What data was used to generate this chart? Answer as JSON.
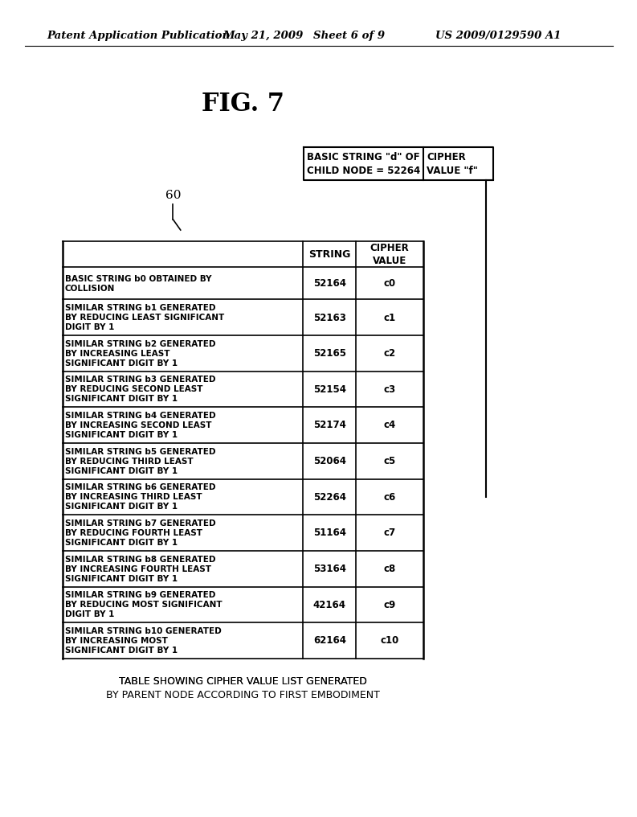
{
  "header_line1": "Patent Application Publication",
  "header_date": "May 21, 2009",
  "header_sheet": "Sheet 6 of 9",
  "header_patent": "US 2009/0129590 A1",
  "fig_title": "FIG. 7",
  "table_label": "60",
  "top_box_col1": "BASIC STRING \"d\" OF\nCHILD NODE = 52264",
  "top_box_col2": "CIPHER\nVALUE \"f\"",
  "col_header1": "STRING",
  "col_header2": "CIPHER\nVALUE",
  "rows": [
    {
      "description": "BASIC STRING b0 OBTAINED BY\nCOLLISION",
      "string_val": "52164",
      "cipher_val": "c0"
    },
    {
      "description": "SIMILAR STRING b1 GENERATED\nBY REDUCING LEAST SIGNIFICANT\nDIGIT BY 1",
      "string_val": "52163",
      "cipher_val": "c1"
    },
    {
      "description": "SIMILAR STRING b2 GENERATED\nBY INCREASING LEAST\nSIGNIFICANT DIGIT BY 1",
      "string_val": "52165",
      "cipher_val": "c2"
    },
    {
      "description": "SIMILAR STRING b3 GENERATED\nBY REDUCING SECOND LEAST\nSIGNIFICANT DIGIT BY 1",
      "string_val": "52154",
      "cipher_val": "c3"
    },
    {
      "description": "SIMILAR STRING b4 GENERATED\nBY INCREASING SECOND LEAST\nSIGNIFICANT DIGIT BY 1",
      "string_val": "52174",
      "cipher_val": "c4"
    },
    {
      "description": "SIMILAR STRING b5 GENERATED\nBY REDUCING THIRD LEAST\nSIGNIFICANT DIGIT BY 1",
      "string_val": "52064",
      "cipher_val": "c5"
    },
    {
      "description": "SIMILAR STRING b6 GENERATED\nBY INCREASING THIRD LEAST\nSIGNIFICANT DIGIT BY 1",
      "string_val": "52264",
      "cipher_val": "c6"
    },
    {
      "description": "SIMILAR STRING b7 GENERATED\nBY REDUCING FOURTH LEAST\nSIGNIFICANT DIGIT BY 1",
      "string_val": "51164",
      "cipher_val": "c7"
    },
    {
      "description": "SIMILAR STRING b8 GENERATED\nBY INCREASING FOURTH LEAST\nSIGNIFICANT DIGIT BY 1",
      "string_val": "53164",
      "cipher_val": "c8"
    },
    {
      "description": "SIMILAR STRING b9 GENERATED\nBY REDUCING MOST SIGNIFICANT\nDIGIT BY 1",
      "string_val": "42164",
      "cipher_val": "c9"
    },
    {
      "description": "SIMILAR STRING b10 GENERATED\nBY INCREASING MOST\nSIGNIFICANT DIGIT BY 1",
      "string_val": "62164",
      "cipher_val": "c10"
    }
  ],
  "caption_line1": "TABLE SHOWING CIPHER VALUE LIST GENERATED",
  "caption_line2": "BY PARENT NODE ACCORDING TO FIRST EMBODIMENT",
  "bg_color": "#ffffff",
  "line_color": "#000000",
  "text_color": "#000000"
}
